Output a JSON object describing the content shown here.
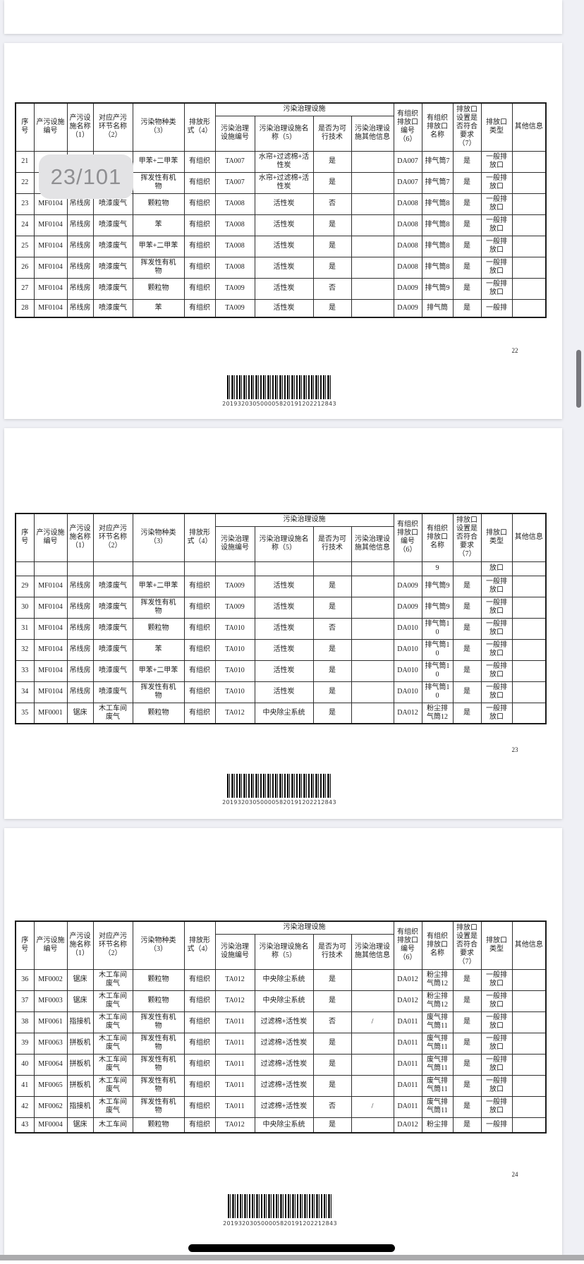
{
  "app": {
    "page_indicator": "23/101"
  },
  "document": {
    "barcode_text": "201932030500005820191202212843",
    "table": {
      "group_header": "污染治理设施",
      "columns": [
        "序号",
        "产污设施编号",
        "产污设施名称（1）",
        "对应产污环节名称（2）",
        "污染物种类（3）",
        "排放形式（4）",
        "污染治理设施编号",
        "污染治理设施名称（5）",
        "是否为可行技术",
        "污染治理设施其他信息",
        "有组织排放口编号（6）",
        "有组织排放口名称",
        "排放口设置是否符合要求（7）",
        "排放口类型",
        "其他信息"
      ]
    },
    "pages": [
      {
        "footer_page_number": "22",
        "rows": [
          [
            "21",
            "",
            "",
            "",
            "甲苯+二甲苯",
            "有组织",
            "TA007",
            "水帘+过滤棉+活性炭",
            "是",
            "",
            "DA007",
            "排气筒7",
            "是",
            "一般排放口",
            ""
          ],
          [
            "22",
            "",
            "",
            "",
            "挥发性有机物",
            "有组织",
            "TA007",
            "水帘+过滤棉+活性炭",
            "是",
            "",
            "DA007",
            "排气筒7",
            "是",
            "一般排放口",
            ""
          ],
          [
            "23",
            "MF0104",
            "吊线房",
            "喷漆废气",
            "颗粒物",
            "有组织",
            "TA008",
            "活性炭",
            "否",
            "",
            "DA008",
            "排气筒8",
            "是",
            "一般排放口",
            ""
          ],
          [
            "24",
            "MF0104",
            "吊线房",
            "喷漆废气",
            "苯",
            "有组织",
            "TA008",
            "活性炭",
            "是",
            "",
            "DA008",
            "排气筒8",
            "是",
            "一般排放口",
            ""
          ],
          [
            "25",
            "MF0104",
            "吊线房",
            "喷漆废气",
            "甲苯+二甲苯",
            "有组织",
            "TA008",
            "活性炭",
            "是",
            "",
            "DA008",
            "排气筒8",
            "是",
            "一般排放口",
            ""
          ],
          [
            "26",
            "MF0104",
            "吊线房",
            "喷漆废气",
            "挥发性有机物",
            "有组织",
            "TA008",
            "活性炭",
            "是",
            "",
            "DA008",
            "排气筒8",
            "是",
            "一般排放口",
            ""
          ],
          [
            "27",
            "MF0104",
            "吊线房",
            "喷漆废气",
            "颗粒物",
            "有组织",
            "TA009",
            "活性炭",
            "否",
            "",
            "DA009",
            "排气筒9",
            "是",
            "一般排放口",
            ""
          ],
          [
            "28",
            "MF0104",
            "吊线房",
            "喷漆废气",
            "苯",
            "有组织",
            "TA009",
            "活性炭",
            "是",
            "",
            "DA009",
            "排气筒",
            "是",
            "一般排",
            ""
          ]
        ]
      },
      {
        "footer_page_number": "23",
        "rows": [
          [
            "",
            "",
            "",
            "",
            "",
            "",
            "",
            "",
            "",
            "",
            "",
            "9",
            "",
            "放口",
            ""
          ],
          [
            "29",
            "MF0104",
            "吊线房",
            "喷漆废气",
            "甲苯+二甲苯",
            "有组织",
            "TA009",
            "活性炭",
            "是",
            "",
            "DA009",
            "排气筒9",
            "是",
            "一般排放口",
            ""
          ],
          [
            "30",
            "MF0104",
            "吊线房",
            "喷漆废气",
            "挥发性有机物",
            "有组织",
            "TA009",
            "活性炭",
            "是",
            "",
            "DA009",
            "排气筒9",
            "是",
            "一般排放口",
            ""
          ],
          [
            "31",
            "MF0104",
            "吊线房",
            "喷漆废气",
            "颗粒物",
            "有组织",
            "TA010",
            "活性炭",
            "否",
            "",
            "DA010",
            "排气筒10",
            "是",
            "一般排放口",
            ""
          ],
          [
            "32",
            "MF0104",
            "吊线房",
            "喷漆废气",
            "苯",
            "有组织",
            "TA010",
            "活性炭",
            "是",
            "",
            "DA010",
            "排气筒10",
            "是",
            "一般排放口",
            ""
          ],
          [
            "33",
            "MF0104",
            "吊线房",
            "喷漆废气",
            "甲苯+二甲苯",
            "有组织",
            "TA010",
            "活性炭",
            "是",
            "",
            "DA010",
            "排气筒10",
            "是",
            "一般排放口",
            ""
          ],
          [
            "34",
            "MF0104",
            "吊线房",
            "喷漆废气",
            "挥发性有机物",
            "有组织",
            "TA010",
            "活性炭",
            "是",
            "",
            "DA010",
            "排气筒10",
            "是",
            "一般排放口",
            ""
          ],
          [
            "35",
            "MF0001",
            "锯床",
            "木工车间废气",
            "颗粒物",
            "有组织",
            "TA012",
            "中央除尘系统",
            "是",
            "",
            "DA012",
            "粉尘排气筒12",
            "是",
            "一般排放口",
            ""
          ]
        ]
      },
      {
        "footer_page_number": "24",
        "rows": [
          [
            "36",
            "MF0002",
            "锯床",
            "木工车间废气",
            "颗粒物",
            "有组织",
            "TA012",
            "中央除尘系统",
            "是",
            "",
            "DA012",
            "粉尘排气筒12",
            "是",
            "一般排放口",
            ""
          ],
          [
            "37",
            "MF0003",
            "锯床",
            "木工车间废气",
            "颗粒物",
            "有组织",
            "TA012",
            "中央除尘系统",
            "是",
            "",
            "DA012",
            "粉尘排气筒12",
            "是",
            "一般排放口",
            ""
          ],
          [
            "38",
            "MF0061",
            "指接机",
            "木工车间废气",
            "挥发性有机物",
            "有组织",
            "TA011",
            "过滤棉+活性炭",
            "否",
            "/",
            "DA011",
            "废气排气筒11",
            "是",
            "一般排放口",
            ""
          ],
          [
            "39",
            "MF0063",
            "拼板机",
            "木工车间废气",
            "挥发性有机物",
            "有组织",
            "TA011",
            "过滤棉+活性炭",
            "是",
            "",
            "DA011",
            "废气排气筒11",
            "是",
            "一般排放口",
            ""
          ],
          [
            "40",
            "MF0064",
            "拼板机",
            "木工车间废气",
            "挥发性有机物",
            "有组织",
            "TA011",
            "过滤棉+活性炭",
            "是",
            "",
            "DA011",
            "废气排气筒11",
            "是",
            "一般排放口",
            ""
          ],
          [
            "41",
            "MF0065",
            "拼板机",
            "木工车间废气",
            "挥发性有机物",
            "有组织",
            "TA011",
            "过滤棉+活性炭",
            "是",
            "",
            "DA011",
            "废气排气筒11",
            "是",
            "一般排放口",
            ""
          ],
          [
            "42",
            "MF0062",
            "指接机",
            "木工车间废气",
            "挥发性有机物",
            "有组织",
            "TA011",
            "过滤棉+活性炭",
            "否",
            "/",
            "DA011",
            "废气排气筒11",
            "是",
            "一般排放口",
            ""
          ],
          [
            "43",
            "MF0004",
            "锯床",
            "木工车间",
            "颗粒物",
            "有组织",
            "TA012",
            "中央除尘系统",
            "是",
            "",
            "DA012",
            "粉尘排",
            "是",
            "一般排",
            ""
          ]
        ]
      }
    ]
  }
}
